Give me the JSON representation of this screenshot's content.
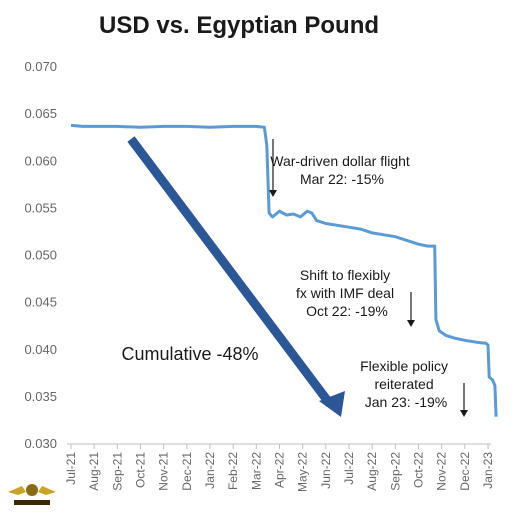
{
  "chart_data": {
    "type": "line",
    "title": "USD vs. Egyptian Pound",
    "xlabel": "",
    "ylabel": "",
    "ylim": [
      0.03,
      0.07
    ],
    "yticks": [
      "0.070",
      "0.065",
      "0.060",
      "0.055",
      "0.050",
      "0.045",
      "0.040",
      "0.035",
      "0.030"
    ],
    "xticks": [
      "Jul-21",
      "Aug-21",
      "Sep-21",
      "Oct-21",
      "Nov-21",
      "Dec-21",
      "Jan-22",
      "Feb-22",
      "Mar-22",
      "Apr-22",
      "May-22",
      "Jun-22",
      "Jul-22",
      "Aug-22",
      "Sep-22",
      "Oct-22",
      "Nov-22",
      "Dec-22",
      "Jan-23"
    ],
    "grid": false,
    "series": [
      {
        "color": "#5b9bd5",
        "points": [
          [
            0.0,
            0.0638
          ],
          [
            0.5,
            0.0637
          ],
          [
            1.0,
            0.0637
          ],
          [
            2.0,
            0.0637
          ],
          [
            3.0,
            0.0636
          ],
          [
            4.0,
            0.0637
          ],
          [
            5.0,
            0.0637
          ],
          [
            6.0,
            0.0636
          ],
          [
            7.0,
            0.0637
          ],
          [
            8.0,
            0.0637
          ],
          [
            8.35,
            0.0636
          ],
          [
            8.45,
            0.0617
          ],
          [
            8.55,
            0.0545
          ],
          [
            8.7,
            0.0541
          ],
          [
            9.0,
            0.0547
          ],
          [
            9.3,
            0.0543
          ],
          [
            9.6,
            0.0544
          ],
          [
            9.9,
            0.0541
          ],
          [
            10.2,
            0.0547
          ],
          [
            10.4,
            0.0545
          ],
          [
            10.6,
            0.0537
          ],
          [
            11.0,
            0.0534
          ],
          [
            11.5,
            0.0532
          ],
          [
            12.0,
            0.053
          ],
          [
            12.5,
            0.0528
          ],
          [
            13.0,
            0.0524
          ],
          [
            13.5,
            0.0522
          ],
          [
            14.0,
            0.052
          ],
          [
            14.5,
            0.0516
          ],
          [
            15.0,
            0.0512
          ],
          [
            15.4,
            0.051
          ],
          [
            15.7,
            0.051
          ],
          [
            15.75,
            0.0432
          ],
          [
            15.9,
            0.042
          ],
          [
            16.2,
            0.0415
          ],
          [
            16.6,
            0.0412
          ],
          [
            17.0,
            0.041
          ],
          [
            17.5,
            0.0408
          ],
          [
            17.9,
            0.0407
          ],
          [
            18.0,
            0.0405
          ],
          [
            18.05,
            0.0371
          ],
          [
            18.2,
            0.0368
          ],
          [
            18.3,
            0.0362
          ],
          [
            18.35,
            0.0329
          ]
        ]
      }
    ],
    "annotations": [
      {
        "lines": [
          "War-driven dollar flight",
          "Mar 22: -15%"
        ]
      },
      {
        "lines": [
          "Shift to flexibly",
          "fx with IMF deal",
          "Oct 22: -19%"
        ]
      },
      {
        "lines": [
          "Flexible policy",
          "reiterated",
          "Jan 23: -19%"
        ]
      },
      {
        "lines": [
          "Cumulative -48%"
        ]
      }
    ]
  }
}
